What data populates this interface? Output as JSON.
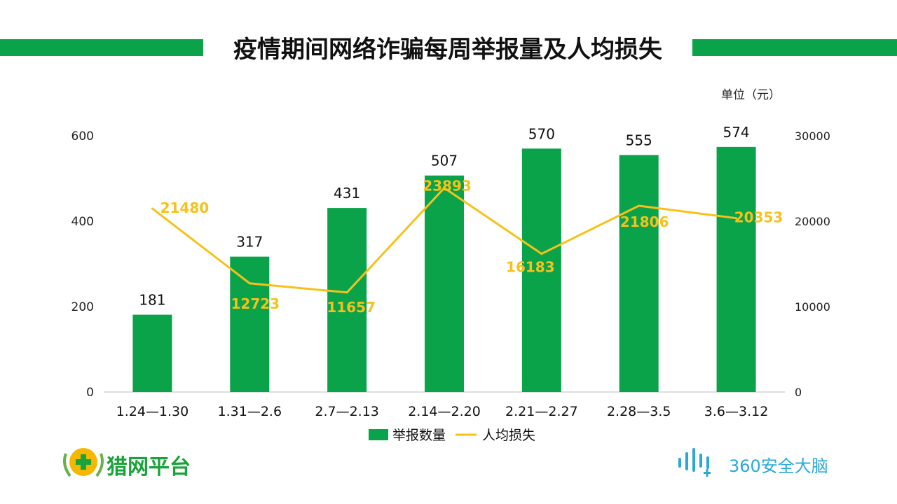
{
  "title": "疫情期间网络诈骗每周举报量及人均损失",
  "logos": {
    "left_text": "猎网平台",
    "right_text": "360安全大脑"
  },
  "colors": {
    "bar": "#0aa34a",
    "line": "#f7c11a",
    "title_bar": "#0aa34a",
    "axis": "#bfbfbf"
  },
  "chart_data": {
    "type": "bar",
    "categories": [
      "1.24—1.30",
      "1.31—2.6",
      "2.7—2.13",
      "2.14—2.20",
      "2.21—2.27",
      "2.28—3.5",
      "3.6—3.12"
    ],
    "series": [
      {
        "name": "举报数量",
        "type": "bar",
        "axis": "left",
        "values": [
          181,
          317,
          431,
          507,
          570,
          555,
          574
        ]
      },
      {
        "name": "人均损失",
        "type": "line",
        "axis": "right",
        "values": [
          21480,
          12723,
          11657,
          23893,
          16183,
          21806,
          20353
        ]
      }
    ],
    "ylim_left": [
      0,
      600
    ],
    "yticks_left": [
      0,
      200,
      400,
      600
    ],
    "ylim_right": [
      0,
      30000
    ],
    "yticks_right": [
      0,
      10000,
      20000,
      30000
    ],
    "right_axis_unit": "单位（元）",
    "legend_position": "bottom",
    "grid": false
  }
}
